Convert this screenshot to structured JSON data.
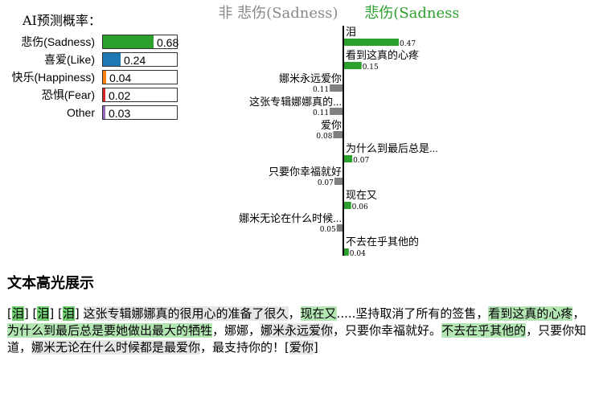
{
  "prediction": {
    "title": "AI预测概率：",
    "items": [
      {
        "label": "悲伤(Sadness)",
        "value": 0.68,
        "display": "0.68",
        "color": "#2ca02c"
      },
      {
        "label": "喜爱(Like)",
        "value": 0.24,
        "display": "0.24",
        "color": "#1f77b4"
      },
      {
        "label": "快乐(Happiness)",
        "value": 0.04,
        "display": "0.04",
        "color": "#ff7f0e"
      },
      {
        "label": "恐惧(Fear)",
        "value": 0.02,
        "display": "0.02",
        "color": "#d62728"
      },
      {
        "label": "Other",
        "value": 0.03,
        "display": "0.03",
        "color": "#9467bd"
      }
    ]
  },
  "chart_data": {
    "type": "bar",
    "orientation": "horizontal-diverging",
    "left_header": "非 悲伤(Sadness)",
    "right_header": "悲伤(Sadness)",
    "colors": {
      "positive": "#2ca02c",
      "negative": "#808080",
      "left_header": "#888888",
      "right_header": "#2ca02c"
    },
    "features": [
      {
        "label": "泪",
        "value": 0.47,
        "display": "0.47",
        "side": "right"
      },
      {
        "label": "看到这真的心疼",
        "value": 0.15,
        "display": "0.15",
        "side": "right"
      },
      {
        "label": "娜米永远爱你",
        "value": 0.11,
        "display": "0.11",
        "side": "left"
      },
      {
        "label": "这张专辑娜娜真的...",
        "value": 0.11,
        "display": "0.11",
        "side": "left"
      },
      {
        "label": "爱你",
        "value": 0.08,
        "display": "0.08",
        "side": "left"
      },
      {
        "label": "为什么到最后总是...",
        "value": 0.07,
        "display": "0.07",
        "side": "right"
      },
      {
        "label": "只要你幸福就好",
        "value": 0.07,
        "display": "0.07",
        "side": "left"
      },
      {
        "label": "现在又",
        "value": 0.06,
        "display": "0.06",
        "side": "right"
      },
      {
        "label": "娜米无论在什么时候...",
        "value": 0.05,
        "display": "0.05",
        "side": "left"
      },
      {
        "label": "不去在乎其他的",
        "value": 0.04,
        "display": "0.04",
        "side": "right"
      }
    ]
  },
  "highlight": {
    "title": "文本高光展示",
    "segments": [
      {
        "text": "[",
        "style": "none"
      },
      {
        "text": "泪",
        "style": "pos-strong"
      },
      {
        "text": "] [",
        "style": "none"
      },
      {
        "text": "泪",
        "style": "pos-strong"
      },
      {
        "text": "] [",
        "style": "none"
      },
      {
        "text": "泪",
        "style": "pos-strong"
      },
      {
        "text": "] ",
        "style": "none"
      },
      {
        "text": "这张专辑娜娜真的很用心的准备了很久",
        "style": "neg"
      },
      {
        "text": "，",
        "style": "none"
      },
      {
        "text": "现在又",
        "style": "pos"
      },
      {
        "text": ".....坚持取消了所有的签售，",
        "style": "none"
      },
      {
        "text": "看到这真的心疼",
        "style": "pos"
      },
      {
        "text": "，",
        "style": "none"
      },
      {
        "text": "为什么到最后总是要她做出最大的牺牲",
        "style": "pos"
      },
      {
        "text": "，娜娜，",
        "style": "none"
      },
      {
        "text": "娜米永远爱你",
        "style": "neg"
      },
      {
        "text": "，只要你幸福就好。",
        "style": "none"
      },
      {
        "text": "不去在乎其他的",
        "style": "pos"
      },
      {
        "text": "，只要你知道，",
        "style": "none"
      },
      {
        "text": "娜米无论在什么时候都是最爱你",
        "style": "neg"
      },
      {
        "text": "，最支持你的！[",
        "style": "none"
      },
      {
        "text": "爱你",
        "style": "neg"
      },
      {
        "text": "]",
        "style": "none"
      }
    ]
  }
}
